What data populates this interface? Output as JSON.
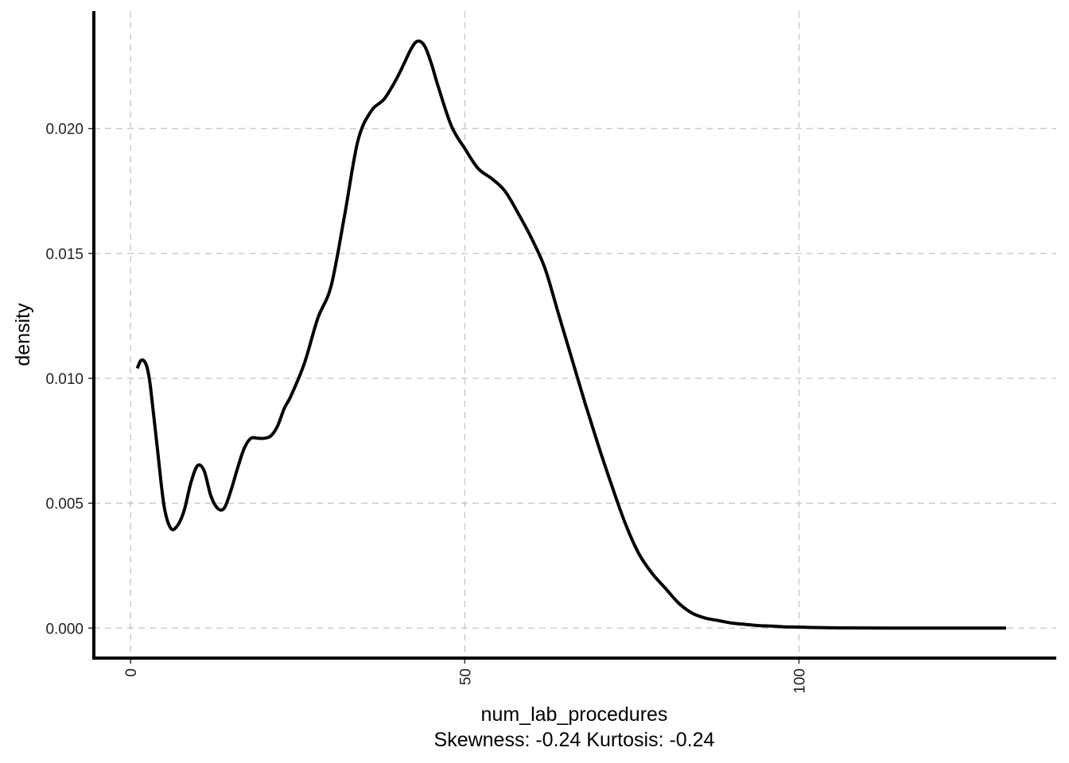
{
  "chart_data": {
    "type": "line",
    "title": "",
    "xlabel": "num_lab_procedures",
    "caption": "Skewness: -0.24 Kurtosis: -0.24",
    "ylabel": "density",
    "xlim": [
      -5.5,
      138.5
    ],
    "ylim": [
      -0.0012,
      0.0247
    ],
    "x_ticks": [
      0,
      50,
      100
    ],
    "x_tick_labels": [
      "0",
      "50",
      "100"
    ],
    "y_ticks": [
      0.0,
      0.005,
      0.01,
      0.015,
      0.02
    ],
    "y_tick_labels": [
      "0.000",
      "0.005",
      "0.010",
      "0.015",
      "0.020"
    ],
    "grid": true,
    "grid_style": "dashed",
    "line_color": "#000000",
    "grid_color": "#d0d0d0",
    "series": [
      {
        "x": [
          1,
          1.5,
          2,
          2.5,
          3,
          4,
          5,
          6,
          7,
          8,
          9,
          10,
          11,
          12,
          13,
          14,
          15,
          16,
          17,
          18,
          19,
          20,
          21,
          22,
          23,
          24,
          26,
          28,
          30,
          32,
          34,
          36,
          38,
          40,
          42,
          43,
          44,
          45,
          46,
          48,
          50,
          52,
          54,
          56,
          58,
          60,
          62,
          64,
          66,
          68,
          70,
          72,
          74,
          76,
          78,
          80,
          82,
          84,
          86,
          88,
          90,
          92,
          94,
          96,
          98,
          100,
          103,
          106,
          110,
          115,
          120,
          125,
          131
        ],
        "values": [
          0.0104,
          0.0107,
          0.0107,
          0.0104,
          0.0096,
          0.0072,
          0.0049,
          0.004,
          0.0041,
          0.0047,
          0.0058,
          0.0065,
          0.0063,
          0.0053,
          0.0048,
          0.0048,
          0.0055,
          0.0064,
          0.0072,
          0.0076,
          0.0076,
          0.0076,
          0.0077,
          0.0081,
          0.0088,
          0.0093,
          0.0106,
          0.0124,
          0.0137,
          0.0165,
          0.0195,
          0.0207,
          0.0212,
          0.0221,
          0.0232,
          0.0235,
          0.0233,
          0.0226,
          0.0217,
          0.0201,
          0.0192,
          0.0184,
          0.018,
          0.0175,
          0.0166,
          0.0156,
          0.0144,
          0.0126,
          0.0108,
          0.009,
          0.0073,
          0.0057,
          0.0042,
          0.003,
          0.0022,
          0.0016,
          0.001,
          0.0006,
          0.0004,
          0.0003,
          0.0002,
          0.00015,
          0.0001,
          8e-05,
          5e-05,
          4e-05,
          2e-05,
          1e-05,
          5e-06,
          2e-06,
          1e-06,
          5e-07,
          0.0
        ]
      }
    ]
  }
}
